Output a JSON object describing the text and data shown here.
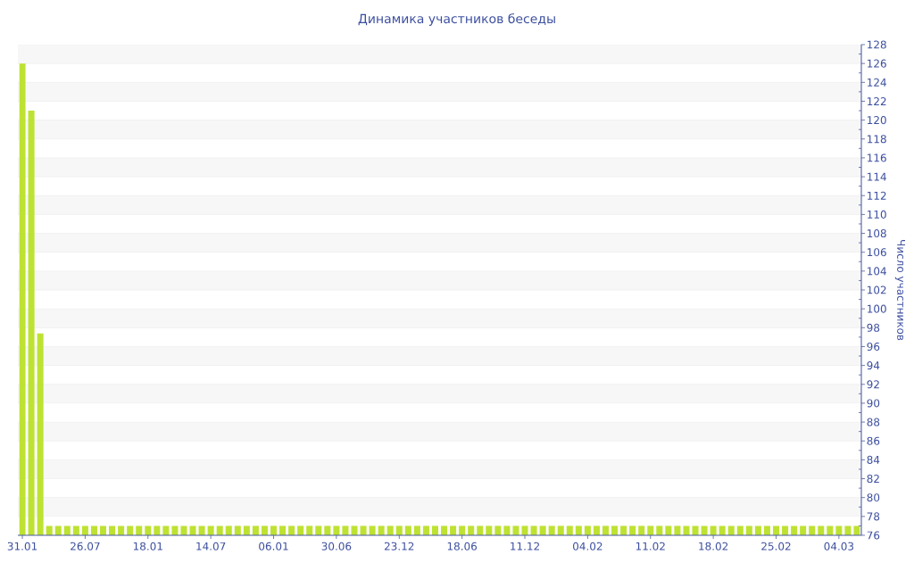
{
  "chart_data": {
    "type": "bar",
    "title": "Динамика участников беседы",
    "ylabel": "Число участников",
    "categories": [
      "31.01",
      null,
      null,
      null,
      null,
      null,
      null,
      "26.07",
      null,
      null,
      null,
      null,
      null,
      null,
      "18.01",
      null,
      null,
      null,
      null,
      null,
      null,
      "14.07",
      null,
      null,
      null,
      null,
      null,
      null,
      "06.01",
      null,
      null,
      null,
      null,
      null,
      null,
      "30.06",
      null,
      null,
      null,
      null,
      null,
      null,
      "23.12",
      null,
      null,
      null,
      null,
      null,
      null,
      "18.06",
      null,
      null,
      null,
      null,
      null,
      null,
      "11.12",
      null,
      null,
      null,
      null,
      null,
      null,
      "04.02",
      null,
      null,
      null,
      null,
      null,
      null,
      "11.02",
      null,
      null,
      null,
      null,
      null,
      null,
      "18.02",
      null,
      null,
      null,
      null,
      null,
      null,
      "25.02",
      null,
      null,
      null,
      null,
      null,
      null,
      "04.03",
      null,
      null
    ],
    "values": [
      126,
      121,
      97.4,
      77,
      77,
      77,
      77,
      77,
      77,
      77,
      77,
      77,
      77,
      77,
      77,
      77,
      77,
      77,
      77,
      77,
      77,
      77,
      77,
      77,
      77,
      77,
      77,
      77,
      77,
      77,
      77,
      77,
      77,
      77,
      77,
      77,
      77,
      77,
      77,
      77,
      77,
      77,
      77,
      77,
      77,
      77,
      77,
      77,
      77,
      77,
      77,
      77,
      77,
      77,
      77,
      77,
      77,
      77,
      77,
      77,
      77,
      77,
      77,
      77,
      77,
      77,
      77,
      77,
      77,
      77,
      77,
      77,
      77,
      77,
      77,
      77,
      77,
      77,
      77,
      77,
      77,
      77,
      77,
      77,
      77,
      77,
      77,
      77,
      77,
      77,
      77,
      77,
      77,
      77
    ],
    "color": "#bde232",
    "ylim": [
      76,
      128
    ],
    "yticks": [
      76,
      {
        "value": 77,
        "label": null
      },
      78,
      {
        "value": 79,
        "label": null
      },
      80,
      {
        "value": 81,
        "label": null
      },
      82,
      {
        "value": 83,
        "label": null
      },
      84,
      {
        "value": 85,
        "label": null
      },
      86,
      {
        "value": 87,
        "label": null
      },
      88,
      {
        "value": 89,
        "label": null
      },
      90,
      {
        "value": 91,
        "label": null
      },
      92,
      {
        "value": 93,
        "label": null
      },
      94,
      {
        "value": 95,
        "label": null
      },
      96,
      {
        "value": 97,
        "label": null
      },
      98,
      {
        "value": 99,
        "label": null
      },
      100,
      {
        "value": 101,
        "label": null
      },
      102,
      {
        "value": 103,
        "label": null
      },
      104,
      {
        "value": 105,
        "label": null
      },
      106,
      {
        "value": 107,
        "label": null
      },
      108,
      {
        "value": 109,
        "label": null
      },
      110,
      {
        "value": 111,
        "label": null
      },
      112,
      {
        "value": 113,
        "label": null
      },
      114,
      {
        "value": 115,
        "label": null
      },
      116,
      {
        "value": 117,
        "label": null
      },
      118,
      {
        "value": 119,
        "label": null
      },
      120,
      {
        "value": 121,
        "label": null
      },
      122,
      {
        "value": 123,
        "label": null
      },
      124,
      {
        "value": 125,
        "label": null
      },
      126,
      {
        "value": 127,
        "label": null
      },
      128
    ],
    "grid": "y"
  }
}
